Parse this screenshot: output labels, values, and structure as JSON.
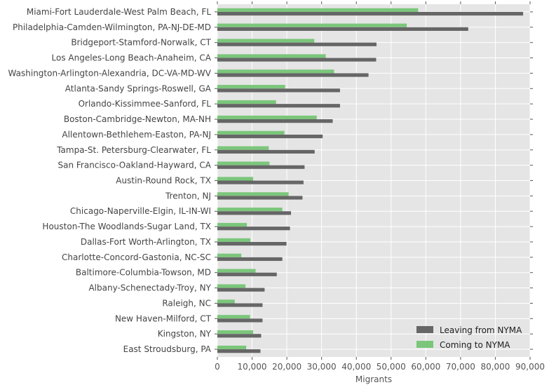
{
  "chart_data": {
    "type": "bar",
    "orientation": "horizontal",
    "xlabel": "Migrants",
    "ylabel": "",
    "xlim": [
      0,
      90000
    ],
    "xticks": [
      0,
      10000,
      20000,
      30000,
      40000,
      50000,
      60000,
      70000,
      80000,
      90000
    ],
    "xtick_labels": [
      "0",
      "10,000",
      "20,000",
      "30,000",
      "40,000",
      "50,000",
      "60,000",
      "70,000",
      "80,000",
      "90,000"
    ],
    "grid": true,
    "legend_position": "lower-right",
    "categories": [
      "Miami-Fort Lauderdale-West Palm Beach, FL",
      "Philadelphia-Camden-Wilmington, PA-NJ-DE-MD",
      "Bridgeport-Stamford-Norwalk, CT",
      "Los Angeles-Long Beach-Anaheim, CA",
      "Washington-Arlington-Alexandria, DC-VA-MD-WV",
      "Atlanta-Sandy Springs-Roswell, GA",
      "Orlando-Kissimmee-Sanford, FL",
      "Boston-Cambridge-Newton, MA-NH",
      "Allentown-Bethlehem-Easton, PA-NJ",
      "Tampa-St. Petersburg-Clearwater, FL",
      "San Francisco-Oakland-Hayward, CA",
      "Austin-Round Rock, TX",
      "Trenton, NJ",
      "Chicago-Naperville-Elgin, IL-IN-WI",
      "Houston-The Woodlands-Sugar Land, TX",
      "Dallas-Fort Worth-Arlington, TX",
      "Charlotte-Concord-Gastonia, NC-SC",
      "Baltimore-Columbia-Towson, MD",
      "Albany-Schenectady-Troy, NY",
      "Raleigh, NC",
      "New Haven-Milford, CT",
      "Kingston, NY",
      "East Stroudsburg, PA"
    ],
    "series": [
      {
        "name": "Leaving from NYMA",
        "color": "#666666",
        "values": [
          88000,
          72200,
          45800,
          45700,
          43500,
          35300,
          35300,
          33200,
          30300,
          28000,
          25100,
          24800,
          24500,
          21200,
          20900,
          19900,
          18700,
          17100,
          13600,
          13000,
          13000,
          12600,
          12400
        ]
      },
      {
        "name": "Coming to NYMA",
        "color": "#7bc67b",
        "values": [
          57800,
          54500,
          27900,
          31200,
          33600,
          19500,
          16900,
          28600,
          19300,
          14800,
          15000,
          10300,
          20500,
          18700,
          8500,
          9500,
          6900,
          11000,
          8100,
          5000,
          9400,
          10300,
          8300
        ]
      }
    ]
  }
}
